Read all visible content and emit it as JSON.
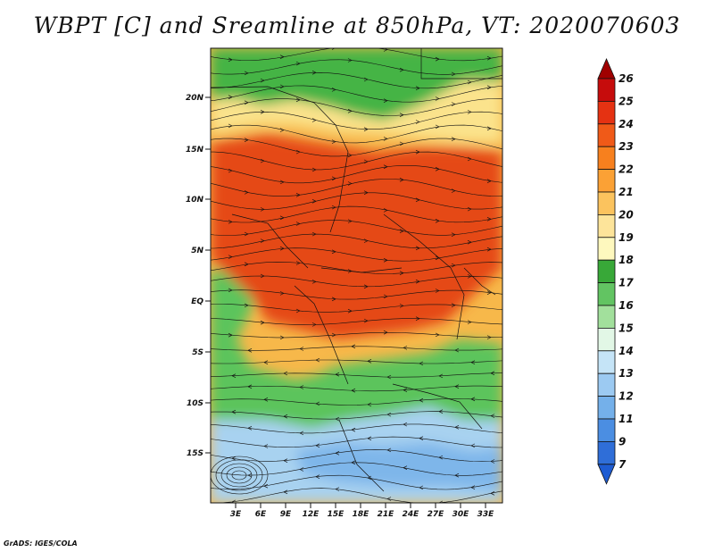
{
  "title": "WBPT [C] and Sreamline at 850hPa, VT: 2020070603",
  "credit": "GrADS: IGES/COLA",
  "map": {
    "lon_ticks": [
      "3E",
      "6E",
      "9E",
      "12E",
      "15E",
      "18E",
      "21E",
      "24E",
      "27E",
      "30E",
      "33E"
    ],
    "lat_ticks": [
      "20N",
      "15N",
      "10N",
      "5N",
      "EQ",
      "5S",
      "10S",
      "15S"
    ],
    "zones": [
      {
        "name": "north-green",
        "color": "#44b444"
      },
      {
        "name": "north-yellow",
        "color": "#fbe38c"
      },
      {
        "name": "central-orange",
        "color": "#f49a2a"
      },
      {
        "name": "core-red",
        "color": "#e54a18"
      },
      {
        "name": "south-green",
        "color": "#5cc45c"
      },
      {
        "name": "south-blue",
        "color": "#a8d2f0"
      },
      {
        "name": "deep-blue",
        "color": "#7eb6ea"
      }
    ]
  },
  "colorbar": {
    "labels": [
      "26",
      "25",
      "24",
      "23",
      "22",
      "21",
      "20",
      "19",
      "18",
      "17",
      "16",
      "15",
      "14",
      "13",
      "12",
      "11",
      "9",
      "7"
    ],
    "colors": [
      "#a00000",
      "#c60c0c",
      "#e53212",
      "#f05a18",
      "#f7801e",
      "#fba135",
      "#fbc35e",
      "#fde49a",
      "#fef8be",
      "#38a838",
      "#62c462",
      "#a2e09c",
      "#e2f7e6",
      "#c5e4f7",
      "#9ccaf2",
      "#74b0ea",
      "#4b8ee2",
      "#2f6ed8",
      "#1e5cd2"
    ]
  }
}
